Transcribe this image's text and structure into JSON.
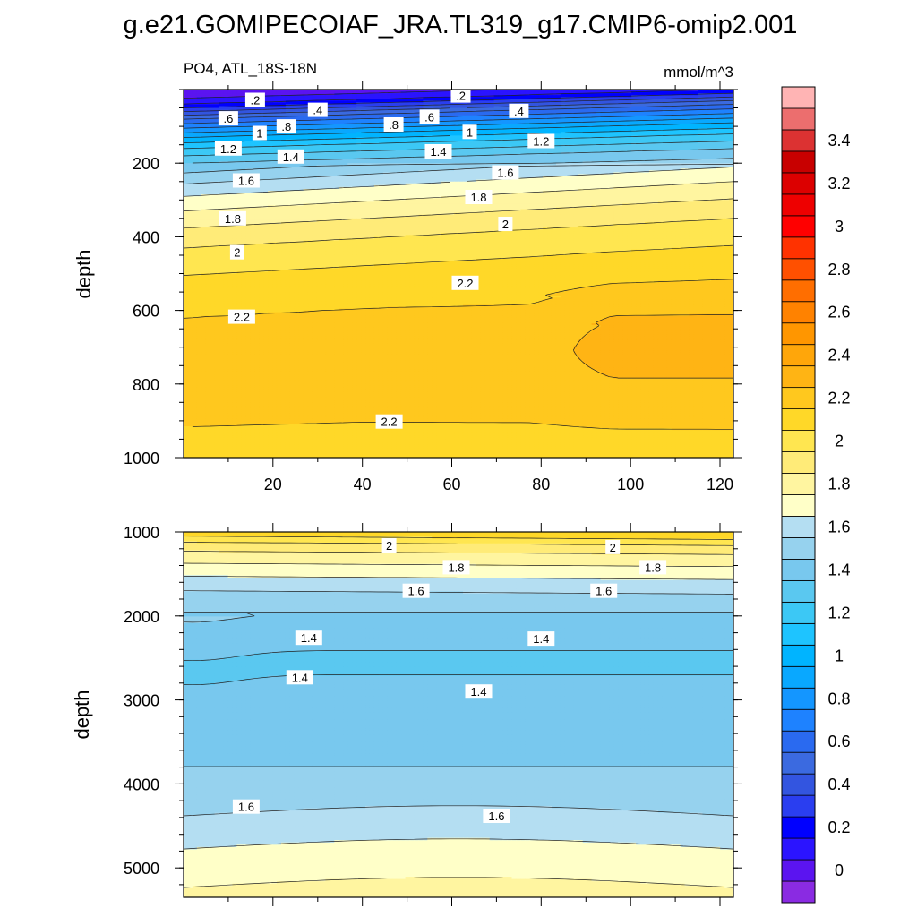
{
  "figure": {
    "title": "g.e21.GOMIPECOIAF_JRA.TL319_g17.CMIP6-omip2.001"
  },
  "chart_data": [
    {
      "type": "contour",
      "panel": "upper",
      "left_label": "PO4, ATL_18S-18N",
      "right_label": "mmol/m^3",
      "ylabel": "depth",
      "xlabel": "",
      "xlim": [
        0,
        123
      ],
      "ylim": [
        1000,
        0
      ],
      "y_reversed": true,
      "xticks": [
        20,
        40,
        60,
        80,
        100,
        120
      ],
      "yticks": [
        200,
        400,
        600,
        800,
        1000
      ],
      "contour_interval": 0.1,
      "contour_labels": [
        {
          "x": 16,
          "y": 28,
          "text": ".2"
        },
        {
          "x": 62,
          "y": 16,
          "text": ".2"
        },
        {
          "x": 30,
          "y": 55,
          "text": ".4"
        },
        {
          "x": 75,
          "y": 58,
          "text": ".4"
        },
        {
          "x": 10,
          "y": 78,
          "text": ".6"
        },
        {
          "x": 55,
          "y": 74,
          "text": ".6"
        },
        {
          "x": 23,
          "y": 100,
          "text": ".8"
        },
        {
          "x": 47,
          "y": 95,
          "text": ".8"
        },
        {
          "x": 17,
          "y": 118,
          "text": "1"
        },
        {
          "x": 64,
          "y": 115,
          "text": "1"
        },
        {
          "x": 10,
          "y": 160,
          "text": "1.2"
        },
        {
          "x": 80,
          "y": 140,
          "text": "1.2"
        },
        {
          "x": 24,
          "y": 182,
          "text": "1.4"
        },
        {
          "x": 57,
          "y": 168,
          "text": "1.4"
        },
        {
          "x": 14,
          "y": 247,
          "text": "1.6"
        },
        {
          "x": 72,
          "y": 225,
          "text": "1.6"
        },
        {
          "x": 11,
          "y": 350,
          "text": "1.8"
        },
        {
          "x": 66,
          "y": 292,
          "text": "1.8"
        },
        {
          "x": 12,
          "y": 442,
          "text": "2"
        },
        {
          "x": 72,
          "y": 365,
          "text": "2"
        },
        {
          "x": 13,
          "y": 617,
          "text": "2.2"
        },
        {
          "x": 63,
          "y": 525,
          "text": "2.2"
        },
        {
          "x": 46,
          "y": 902,
          "text": "2.2"
        }
      ]
    },
    {
      "type": "contour",
      "panel": "lower",
      "ylabel": "depth",
      "xlabel": "",
      "xlim": [
        0,
        123
      ],
      "ylim": [
        5350,
        1000
      ],
      "y_reversed": true,
      "yticks": [
        1000,
        2000,
        3000,
        4000,
        5000
      ],
      "contour_interval": 0.1,
      "contour_labels": [
        {
          "x": 46,
          "y": 1160,
          "text": "2"
        },
        {
          "x": 96,
          "y": 1180,
          "text": "2"
        },
        {
          "x": 61,
          "y": 1420,
          "text": "1.8"
        },
        {
          "x": 105,
          "y": 1420,
          "text": "1.8"
        },
        {
          "x": 52,
          "y": 1700,
          "text": "1.6"
        },
        {
          "x": 94,
          "y": 1700,
          "text": "1.6"
        },
        {
          "x": 28,
          "y": 2260,
          "text": "1.4"
        },
        {
          "x": 80,
          "y": 2270,
          "text": "1.4"
        },
        {
          "x": 26,
          "y": 2730,
          "text": "1.4"
        },
        {
          "x": 66,
          "y": 2900,
          "text": "1.4"
        },
        {
          "x": 14,
          "y": 4270,
          "text": "1.6"
        },
        {
          "x": 70,
          "y": 4380,
          "text": "1.6"
        }
      ]
    }
  ],
  "colorbar": {
    "tick_labels": [
      "0",
      "0.2",
      "0.4",
      "0.6",
      "0.8",
      "1",
      "1.2",
      "1.4",
      "1.6",
      "1.8",
      "2",
      "2.2",
      "2.4",
      "2.6",
      "2.8",
      "3",
      "3.2",
      "3.4"
    ],
    "levels": [
      -0.1,
      0.0,
      0.1,
      0.2,
      0.3,
      0.4,
      0.5,
      0.6,
      0.7,
      0.8,
      0.9,
      1.0,
      1.1,
      1.2,
      1.3,
      1.4,
      1.5,
      1.6,
      1.7,
      1.8,
      1.9,
      2.0,
      2.1,
      2.2,
      2.3,
      2.4,
      2.5,
      2.6,
      2.7,
      2.8,
      2.9,
      3.0,
      3.1,
      3.2,
      3.3,
      3.4,
      3.5,
      3.6
    ],
    "colors": [
      "#8a2be2",
      "#5b14f0",
      "#2b14ff",
      "#0000ff",
      "#2a3ef0",
      "#3355e0",
      "#3b6ae0",
      "#2a6af0",
      "#1e82ff",
      "#1496ff",
      "#09a8ff",
      "#00b4ff",
      "#1ec4ff",
      "#3cc8f5",
      "#5ac8f0",
      "#78c8ee",
      "#96d2ee",
      "#b4def2",
      "#ffffc8",
      "#fff5a0",
      "#ffeb78",
      "#ffe650",
      "#ffd828",
      "#ffc81e",
      "#ffb414",
      "#ffa60a",
      "#ff9600",
      "#ff8200",
      "#ff6e00",
      "#ff5000",
      "#ff3200",
      "#ff0000",
      "#ee0000",
      "#dc0000",
      "#c80000",
      "#dc3232",
      "#ec6e6e",
      "#ffb4b4"
    ]
  }
}
